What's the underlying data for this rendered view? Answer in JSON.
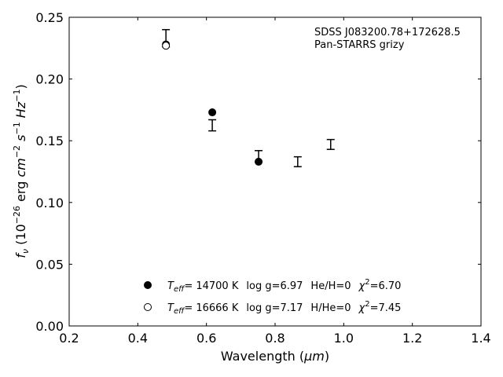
{
  "chart_data": {
    "type": "scatter",
    "xlabel_prefix": "Wavelength (",
    "xlabel_unit": "μm",
    "xlabel_suffix": ")",
    "ylabel": "f_ν (10^-26 erg cm^-2 s^-1 Hz^-1)",
    "xlim": [
      0.2,
      1.4
    ],
    "ylim": [
      0.0,
      0.25
    ],
    "xticks": [
      0.2,
      0.4,
      0.6,
      0.8,
      1.0,
      1.2,
      1.4
    ],
    "xtick_labels": [
      "0.2",
      "0.4",
      "0.6",
      "0.8",
      "1.0",
      "1.2",
      "1.4"
    ],
    "yticks": [
      0.0,
      0.05,
      0.1,
      0.15,
      0.2,
      0.25
    ],
    "ytick_labels": [
      "0.00",
      "0.05",
      "0.10",
      "0.15",
      "0.20",
      "0.25"
    ],
    "annotation": [
      "SDSS J083200.78+172628.5",
      "Pan-STARRS grizy"
    ],
    "observed": [
      {
        "x": 0.482,
        "ylo": 0.226,
        "yhi": 0.24
      },
      {
        "x": 0.617,
        "ylo": 0.158,
        "yhi": 0.167
      },
      {
        "x": 0.752,
        "ylo": 0.133,
        "yhi": 0.142
      },
      {
        "x": 0.866,
        "ylo": 0.129,
        "yhi": 0.137
      },
      {
        "x": 0.962,
        "ylo": 0.143,
        "yhi": 0.151
      }
    ],
    "series": [
      {
        "filled": true,
        "values": [
          {
            "x": 0.482,
            "y": 0.228
          },
          {
            "x": 0.617,
            "y": 0.173
          },
          {
            "x": 0.752,
            "y": 0.133
          }
        ],
        "teff": "= 14700 K",
        "logg": "log g=6.97",
        "ratio": "He/H=0",
        "chi2": "=6.70"
      },
      {
        "filled": false,
        "values": [
          {
            "x": 0.482,
            "y": 0.227
          }
        ],
        "teff": "= 16666 K",
        "logg": "log g=7.17",
        "ratio": "H/He=0",
        "chi2": "=7.45"
      }
    ]
  }
}
